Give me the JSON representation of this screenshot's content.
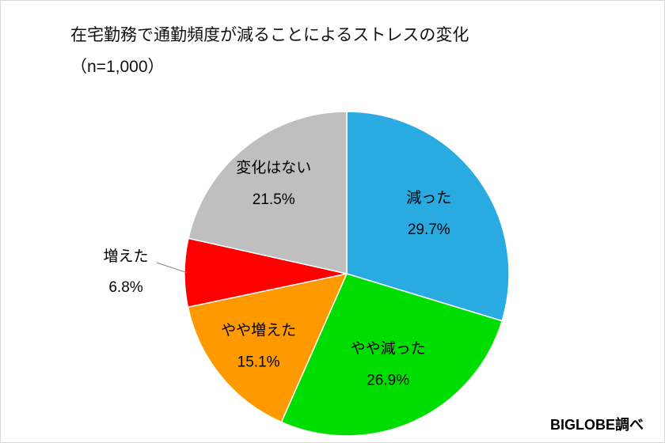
{
  "title": {
    "line1": "在宅勤務で通勤頻度が減ることによるストレスの変化",
    "line2": "（n=1,000）"
  },
  "source": "BIGLOBE調べ",
  "chart_data": {
    "type": "pie",
    "title": "在宅勤務で通勤頻度が減ることによるストレスの変化（n=1,000）",
    "start_angle_deg": 0,
    "direction": "clockwise",
    "legend": "none",
    "slices": [
      {
        "label": "減った",
        "value": 29.7,
        "display": "29.7%",
        "color": "#29ABE2",
        "label_placement": "inside"
      },
      {
        "label": "やや減った",
        "value": 26.9,
        "display": "26.9%",
        "color": "#00DD00",
        "label_placement": "inside"
      },
      {
        "label": "やや増えた",
        "value": 15.1,
        "display": "15.1%",
        "color": "#FF9900",
        "label_placement": "inside"
      },
      {
        "label": "増えた",
        "value": 6.8,
        "display": "6.8%",
        "color": "#FF0000",
        "label_placement": "outside-left"
      },
      {
        "label": "変化はない",
        "value": 21.5,
        "display": "21.5%",
        "color": "#BFBFBF",
        "label_placement": "inside"
      }
    ]
  }
}
